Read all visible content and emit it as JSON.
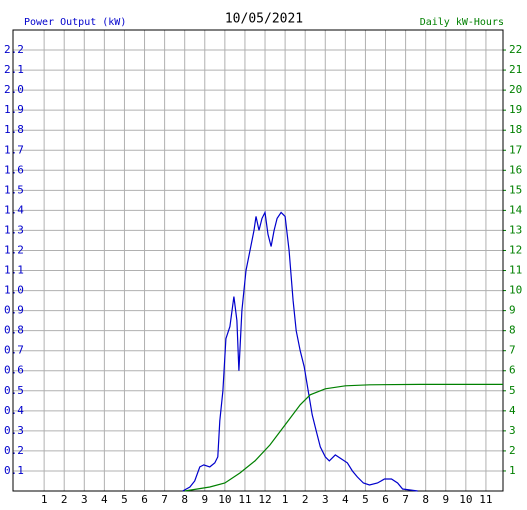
{
  "chart_data": {
    "type": "line",
    "title": "10/05/2021",
    "ylabel": "Power Output (kW)",
    "y2label": "Daily kW-Hours",
    "x": [
      7.9,
      8.26,
      8.5,
      8.75,
      8.95,
      9.25,
      9.5,
      9.65,
      9.75,
      9.9,
      10.05,
      10.25,
      10.45,
      10.6,
      10.7,
      10.85,
      11.05,
      11.25,
      11.45,
      11.55,
      11.7,
      11.85,
      12.0,
      12.15,
      12.3,
      12.45,
      12.6,
      12.8,
      13.0,
      13.2,
      13.4,
      13.55,
      13.75,
      13.95,
      14.15,
      14.35,
      14.55,
      14.75,
      15.0,
      15.2,
      15.5,
      15.8,
      16.1,
      16.35,
      16.6,
      16.9,
      17.2,
      17.6,
      17.95,
      18.3,
      18.6,
      18.85,
      19.6
    ],
    "series": [
      {
        "name": "Power Output (kW)",
        "color": "#0000cc",
        "values": [
          0,
          0.02,
          0.05,
          0.12,
          0.13,
          0.12,
          0.14,
          0.17,
          0.35,
          0.5,
          0.76,
          0.82,
          0.97,
          0.85,
          0.6,
          0.9,
          1.1,
          1.2,
          1.3,
          1.37,
          1.3,
          1.36,
          1.39,
          1.28,
          1.22,
          1.3,
          1.36,
          1.39,
          1.37,
          1.2,
          0.95,
          0.8,
          0.7,
          0.62,
          0.5,
          0.38,
          0.3,
          0.22,
          0.17,
          0.15,
          0.18,
          0.16,
          0.14,
          0.1,
          0.07,
          0.04,
          0.03,
          0.04,
          0.06,
          0.06,
          0.04,
          0.01,
          0
        ]
      },
      {
        "name": "Daily kW-Hours",
        "color": "#008000",
        "axis": "y2",
        "x": [
          8.0,
          9.25,
          10.0,
          10.75,
          11.5,
          12.25,
          13.0,
          13.75,
          14.25,
          15.0,
          16.0,
          17.2,
          19.7,
          23.85
        ],
        "values": [
          0,
          0.2,
          0.4,
          0.9,
          1.5,
          2.3,
          3.3,
          4.3,
          4.8,
          5.1,
          5.25,
          5.3,
          5.32,
          5.32
        ]
      }
    ],
    "xlim": [
      -0.55,
      23.85
    ],
    "xticks": [
      1,
      2,
      3,
      4,
      5,
      6,
      7,
      8,
      9,
      10,
      11,
      12,
      {
        "value": 13,
        "label": "1"
      },
      {
        "value": 14,
        "label": "2"
      },
      {
        "value": 15,
        "label": "3"
      },
      {
        "value": 16,
        "label": "4"
      },
      {
        "value": 17,
        "label": "5"
      },
      {
        "value": 18,
        "label": "6"
      },
      {
        "value": 19,
        "label": "7"
      },
      {
        "value": 20,
        "label": "8"
      },
      {
        "value": 21,
        "label": "9"
      },
      {
        "value": 22,
        "label": "10"
      },
      {
        "value": 23,
        "label": "11"
      }
    ],
    "ylim": [
      0,
      2.3
    ],
    "yticks": [
      0.1,
      0.2,
      0.3,
      0.4,
      0.5,
      0.6,
      0.7,
      0.8,
      0.9,
      {
        "value": 1,
        "label": "1.0"
      },
      1.1,
      1.2,
      1.3,
      1.4,
      1.5,
      1.6,
      1.7,
      1.8,
      1.9,
      {
        "value": 2,
        "label": "2.0"
      },
      2.1,
      2.2
    ],
    "y2lim": [
      0,
      23
    ],
    "y2ticks": [
      1,
      2,
      3,
      4,
      5,
      6,
      7,
      8,
      9,
      10,
      11,
      12,
      13,
      14,
      15,
      16,
      17,
      18,
      19,
      20,
      21,
      22
    ],
    "grid": true
  }
}
